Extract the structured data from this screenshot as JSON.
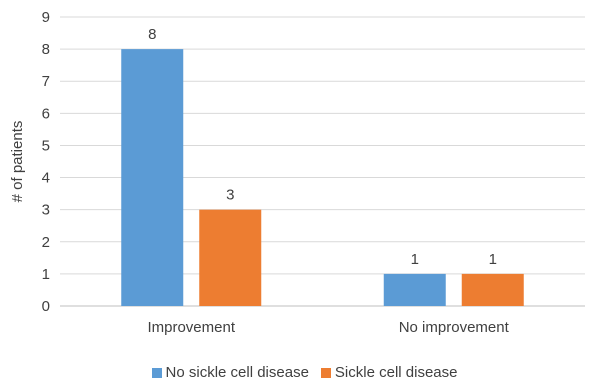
{
  "chart_data": {
    "type": "bar",
    "title": "",
    "xlabel": "",
    "ylabel": "# of patients",
    "ylim": [
      0,
      9
    ],
    "yticks": [
      0,
      1,
      2,
      3,
      4,
      5,
      6,
      7,
      8,
      9
    ],
    "categories": [
      "Improvement",
      "No improvement"
    ],
    "series": [
      {
        "name": "No sickle cell disease",
        "values": [
          8,
          1
        ],
        "color": "#5b9bd5"
      },
      {
        "name": "Sickle cell disease",
        "values": [
          3,
          1
        ],
        "color": "#ed7d31"
      }
    ],
    "grid": true,
    "legend_position": "bottom"
  }
}
